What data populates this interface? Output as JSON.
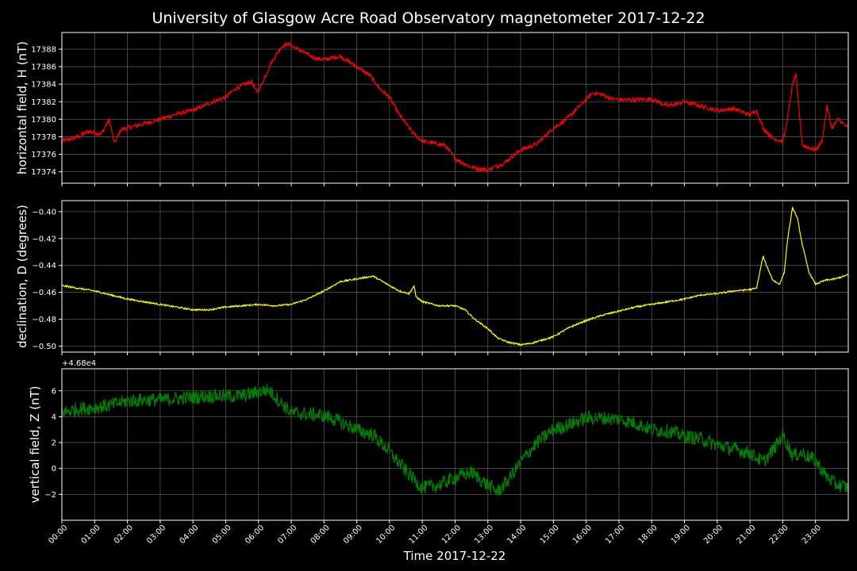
{
  "title": "University of Glasgow Acre Road Observatory magnetometer 2017-12-22",
  "xlabel": "Time 2017-12-22",
  "chart_data": {
    "type": "line",
    "grid": true,
    "title": "University of Glasgow Acre Road Observatory magnetometer 2017-12-22",
    "x_ticks": [
      "00:00",
      "01:00",
      "02:00",
      "03:00",
      "04:00",
      "05:00",
      "06:00",
      "07:00",
      "08:00",
      "09:00",
      "10:00",
      "11:00",
      "12:00",
      "13:00",
      "14:00",
      "15:00",
      "16:00",
      "17:00",
      "18:00",
      "19:00",
      "20:00",
      "21:00",
      "22:00",
      "23:00"
    ],
    "xlim_hours": [
      0,
      24
    ],
    "panels": [
      {
        "name": "H",
        "ylabel": "horizontal field, H (nT)",
        "color": "#ff0000",
        "ylim": [
          17372.7,
          17389.9
        ],
        "yticks": [
          17374,
          17376,
          17378,
          17380,
          17382,
          17384,
          17386,
          17388
        ],
        "ytick_labels": [
          "17374",
          "17376",
          "17378",
          "17380",
          "17382",
          "17384",
          "17386",
          "17388"
        ],
        "offset_text": "",
        "noise": 0.25,
        "points": [
          [
            0,
            17377.5
          ],
          [
            0.5,
            17378
          ],
          [
            0.8,
            17378.6
          ],
          [
            1.2,
            17378.3
          ],
          [
            1.45,
            17380
          ],
          [
            1.6,
            17377.2
          ],
          [
            1.8,
            17378.8
          ],
          [
            2.5,
            17379.5
          ],
          [
            3,
            17380
          ],
          [
            3.5,
            17380.6
          ],
          [
            4,
            17381
          ],
          [
            4.3,
            17381.5
          ],
          [
            4.6,
            17382
          ],
          [
            5,
            17382.5
          ],
          [
            5.3,
            17383.5
          ],
          [
            5.6,
            17384
          ],
          [
            5.8,
            17384.3
          ],
          [
            5.95,
            17383
          ],
          [
            6.1,
            17384
          ],
          [
            6.4,
            17386.5
          ],
          [
            6.7,
            17388.3
          ],
          [
            6.9,
            17388.6
          ],
          [
            7.3,
            17387.8
          ],
          [
            7.7,
            17387
          ],
          [
            8,
            17386.8
          ],
          [
            8.5,
            17387.2
          ],
          [
            9,
            17386
          ],
          [
            9.4,
            17385
          ],
          [
            9.7,
            17383.5
          ],
          [
            10,
            17382.5
          ],
          [
            10.3,
            17380.5
          ],
          [
            10.7,
            17378.5
          ],
          [
            11,
            17377.5
          ],
          [
            11.3,
            17377.3
          ],
          [
            11.7,
            17377
          ],
          [
            12,
            17375.5
          ],
          [
            12.5,
            17374.5
          ],
          [
            13,
            17374.2
          ],
          [
            13.5,
            17375
          ],
          [
            14,
            17376.5
          ],
          [
            14.5,
            17377.2
          ],
          [
            15,
            17379
          ],
          [
            15.4,
            17380
          ],
          [
            15.8,
            17381.5
          ],
          [
            16.2,
            17383
          ],
          [
            16.5,
            17382.8
          ],
          [
            16.8,
            17382.3
          ],
          [
            17.2,
            17382.2
          ],
          [
            18,
            17382.3
          ],
          [
            18.5,
            17381.5
          ],
          [
            19,
            17382
          ],
          [
            19.5,
            17381.5
          ],
          [
            20,
            17381
          ],
          [
            20.5,
            17381.2
          ],
          [
            21,
            17380.5
          ],
          [
            21.2,
            17381
          ],
          [
            21.4,
            17379
          ],
          [
            21.7,
            17377.8
          ],
          [
            22,
            17377.5
          ],
          [
            22.1,
            17379
          ],
          [
            22.3,
            17384
          ],
          [
            22.4,
            17385.2
          ],
          [
            22.5,
            17381
          ],
          [
            22.6,
            17377
          ],
          [
            23,
            17376.5
          ],
          [
            23.2,
            17377.5
          ],
          [
            23.35,
            17381.5
          ],
          [
            23.5,
            17379
          ],
          [
            23.7,
            17380
          ],
          [
            24,
            17379
          ]
        ]
      },
      {
        "name": "D",
        "ylabel": "declination, D (degrees)",
        "color": "#ffff00",
        "ylim": [
          -0.5045,
          -0.3918
        ],
        "yticks": [
          -0.5,
          -0.48,
          -0.46,
          -0.44,
          -0.42,
          -0.4
        ],
        "ytick_labels": [
          "−0.50",
          "−0.48",
          "−0.46",
          "−0.44",
          "−0.42",
          "−0.40"
        ],
        "offset_text": "",
        "noise": 0.0006,
        "points": [
          [
            0,
            -0.455
          ],
          [
            0.5,
            -0.457
          ],
          [
            1,
            -0.459
          ],
          [
            1.5,
            -0.462
          ],
          [
            2,
            -0.465
          ],
          [
            2.5,
            -0.467
          ],
          [
            3,
            -0.469
          ],
          [
            3.5,
            -0.471
          ],
          [
            4,
            -0.473
          ],
          [
            4.5,
            -0.473
          ],
          [
            5,
            -0.471
          ],
          [
            5.5,
            -0.47
          ],
          [
            6,
            -0.469
          ],
          [
            6.5,
            -0.47
          ],
          [
            7,
            -0.469
          ],
          [
            7.5,
            -0.465
          ],
          [
            8,
            -0.459
          ],
          [
            8.5,
            -0.452
          ],
          [
            9,
            -0.45
          ],
          [
            9.5,
            -0.448
          ],
          [
            10,
            -0.455
          ],
          [
            10.3,
            -0.459
          ],
          [
            10.6,
            -0.461
          ],
          [
            10.75,
            -0.455
          ],
          [
            10.8,
            -0.463
          ],
          [
            11,
            -0.467
          ],
          [
            11.5,
            -0.47
          ],
          [
            12,
            -0.47
          ],
          [
            12.3,
            -0.473
          ],
          [
            12.6,
            -0.48
          ],
          [
            13,
            -0.487
          ],
          [
            13.3,
            -0.494
          ],
          [
            13.6,
            -0.497
          ],
          [
            14,
            -0.499
          ],
          [
            14.3,
            -0.498
          ],
          [
            14.6,
            -0.496
          ],
          [
            15,
            -0.493
          ],
          [
            15.5,
            -0.486
          ],
          [
            16,
            -0.481
          ],
          [
            16.5,
            -0.477
          ],
          [
            17,
            -0.474
          ],
          [
            17.5,
            -0.471
          ],
          [
            18,
            -0.469
          ],
          [
            18.5,
            -0.467
          ],
          [
            19,
            -0.465
          ],
          [
            19.5,
            -0.462
          ],
          [
            20,
            -0.461
          ],
          [
            20.5,
            -0.459
          ],
          [
            21,
            -0.458
          ],
          [
            21.2,
            -0.457
          ],
          [
            21.3,
            -0.445
          ],
          [
            21.4,
            -0.433
          ],
          [
            21.5,
            -0.44
          ],
          [
            21.7,
            -0.451
          ],
          [
            21.9,
            -0.454
          ],
          [
            22.05,
            -0.445
          ],
          [
            22.15,
            -0.42
          ],
          [
            22.3,
            -0.397
          ],
          [
            22.45,
            -0.405
          ],
          [
            22.6,
            -0.425
          ],
          [
            22.8,
            -0.445
          ],
          [
            23,
            -0.454
          ],
          [
            23.3,
            -0.451
          ],
          [
            23.6,
            -0.45
          ],
          [
            24,
            -0.447
          ]
        ]
      },
      {
        "name": "Z",
        "ylabel": "vertical field, Z (nT)",
        "color": "#008000",
        "ylim": [
          -4.0,
          7.7
        ],
        "yticks": [
          -2,
          0,
          2,
          4,
          6
        ],
        "ytick_labels": [
          "−2",
          "0",
          "2",
          "4",
          "6"
        ],
        "offset_text": "+4.68e4",
        "noise": 0.55,
        "points": [
          [
            0,
            4.3
          ],
          [
            0.5,
            4.6
          ],
          [
            1,
            4.7
          ],
          [
            1.5,
            4.9
          ],
          [
            2,
            5.2
          ],
          [
            2.5,
            5.3
          ],
          [
            3,
            5.3
          ],
          [
            3.5,
            5.4
          ],
          [
            4,
            5.5
          ],
          [
            4.5,
            5.6
          ],
          [
            5,
            5.6
          ],
          [
            5.5,
            5.6
          ],
          [
            6,
            5.9
          ],
          [
            6.3,
            6.1
          ],
          [
            6.6,
            5.3
          ],
          [
            7,
            4.3
          ],
          [
            7.5,
            4.2
          ],
          [
            8,
            4.1
          ],
          [
            8.5,
            3.6
          ],
          [
            9,
            3.0
          ],
          [
            9.5,
            2.6
          ],
          [
            10,
            1.3
          ],
          [
            10.5,
            -0.2
          ],
          [
            11,
            -1.5
          ],
          [
            11.5,
            -1.3
          ],
          [
            12,
            -0.7
          ],
          [
            12.5,
            -0.3
          ],
          [
            13,
            -1.3
          ],
          [
            13.3,
            -1.8
          ],
          [
            13.6,
            -1.0
          ],
          [
            14,
            0.5
          ],
          [
            14.5,
            2.0
          ],
          [
            15,
            3.0
          ],
          [
            15.5,
            3.4
          ],
          [
            16,
            3.9
          ],
          [
            16.5,
            3.9
          ],
          [
            17,
            3.8
          ],
          [
            17.5,
            3.5
          ],
          [
            18,
            3.0
          ],
          [
            18.5,
            2.9
          ],
          [
            19,
            2.5
          ],
          [
            19.5,
            2.3
          ],
          [
            20,
            1.8
          ],
          [
            20.5,
            1.5
          ],
          [
            21,
            1.2
          ],
          [
            21.4,
            0.5
          ],
          [
            21.7,
            1.4
          ],
          [
            22,
            2.6
          ],
          [
            22.3,
            1.0
          ],
          [
            22.6,
            1.2
          ],
          [
            23,
            0.6
          ],
          [
            23.3,
            -0.5
          ],
          [
            23.6,
            -1.2
          ],
          [
            24,
            -1.5
          ]
        ]
      }
    ]
  }
}
